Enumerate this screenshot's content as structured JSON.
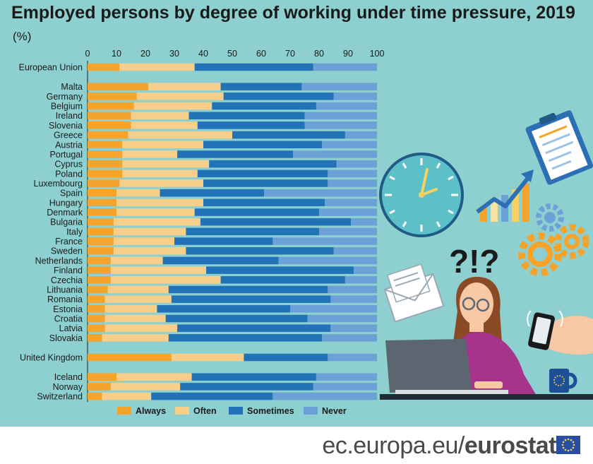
{
  "title": "Employed persons by degree of working under time pressure, 2019",
  "unit": "(%)",
  "footer": {
    "site": "ec.europa.eu/",
    "brand": "eurostat"
  },
  "colors": {
    "always": "#f5a32a",
    "often": "#f7cf8a",
    "sometimes": "#2272b8",
    "never": "#6aa2d8"
  },
  "illustration": {
    "question_marks": "?!?"
  },
  "chart_data": {
    "type": "bar",
    "orientation": "horizontal",
    "stacked": true,
    "title": "Employed persons by degree of working under time pressure, 2019",
    "unit": "(%)",
    "xlim": [
      0,
      100
    ],
    "xticks": [
      0,
      10,
      20,
      30,
      40,
      50,
      60,
      70,
      80,
      90,
      100
    ],
    "legend_position": "bottom",
    "legend": [
      "Always",
      "Often",
      "Sometimes",
      "Never"
    ],
    "categories": [
      "European Union",
      "Malta",
      "Germany",
      "Belgium",
      "Ireland",
      "Slovenia",
      "Greece",
      "Austria",
      "Portugal",
      "Cyprus",
      "Poland",
      "Luxembourg",
      "Spain",
      "Hungary",
      "Denmark",
      "Bulgaria",
      "Italy",
      "France",
      "Sweden",
      "Netherlands",
      "Finland",
      "Czechia",
      "Lithuania",
      "Romania",
      "Estonia",
      "Croatia",
      "Latvia",
      "Slovakia",
      "United Kingdom",
      "Iceland",
      "Norway",
      "Switzerland"
    ],
    "groups": [
      1,
      2,
      2,
      2,
      2,
      2,
      2,
      2,
      2,
      2,
      2,
      2,
      2,
      2,
      2,
      2,
      2,
      2,
      2,
      2,
      2,
      2,
      2,
      2,
      2,
      2,
      2,
      2,
      3,
      4,
      4,
      4
    ],
    "series": [
      {
        "name": "Always",
        "values": [
          11,
          21,
          17,
          16,
          15,
          15,
          14,
          12,
          12,
          12,
          12,
          11,
          10,
          10,
          10,
          9,
          9,
          9,
          9,
          8,
          8,
          8,
          7,
          6,
          6,
          6,
          6,
          5,
          29,
          10,
          8,
          5
        ]
      },
      {
        "name": "Often",
        "values": [
          26,
          25,
          30,
          27,
          20,
          23,
          36,
          28,
          19,
          30,
          26,
          29,
          15,
          30,
          27,
          30,
          25,
          21,
          25,
          18,
          33,
          38,
          21,
          23,
          18,
          21,
          25,
          23,
          25,
          26,
          24,
          17
        ]
      },
      {
        "name": "Sometimes",
        "values": [
          41,
          28,
          38,
          36,
          40,
          37,
          39,
          41,
          40,
          44,
          45,
          43,
          36,
          42,
          43,
          52,
          46,
          34,
          51,
          40,
          51,
          43,
          55,
          55,
          46,
          49,
          53,
          53,
          29,
          43,
          46,
          42
        ]
      },
      {
        "name": "Never",
        "values": [
          22,
          26,
          15,
          21,
          25,
          25,
          11,
          19,
          29,
          14,
          17,
          17,
          39,
          18,
          20,
          9,
          20,
          36,
          15,
          34,
          8,
          11,
          17,
          16,
          30,
          24,
          16,
          19,
          17,
          21,
          22,
          36
        ]
      }
    ]
  }
}
